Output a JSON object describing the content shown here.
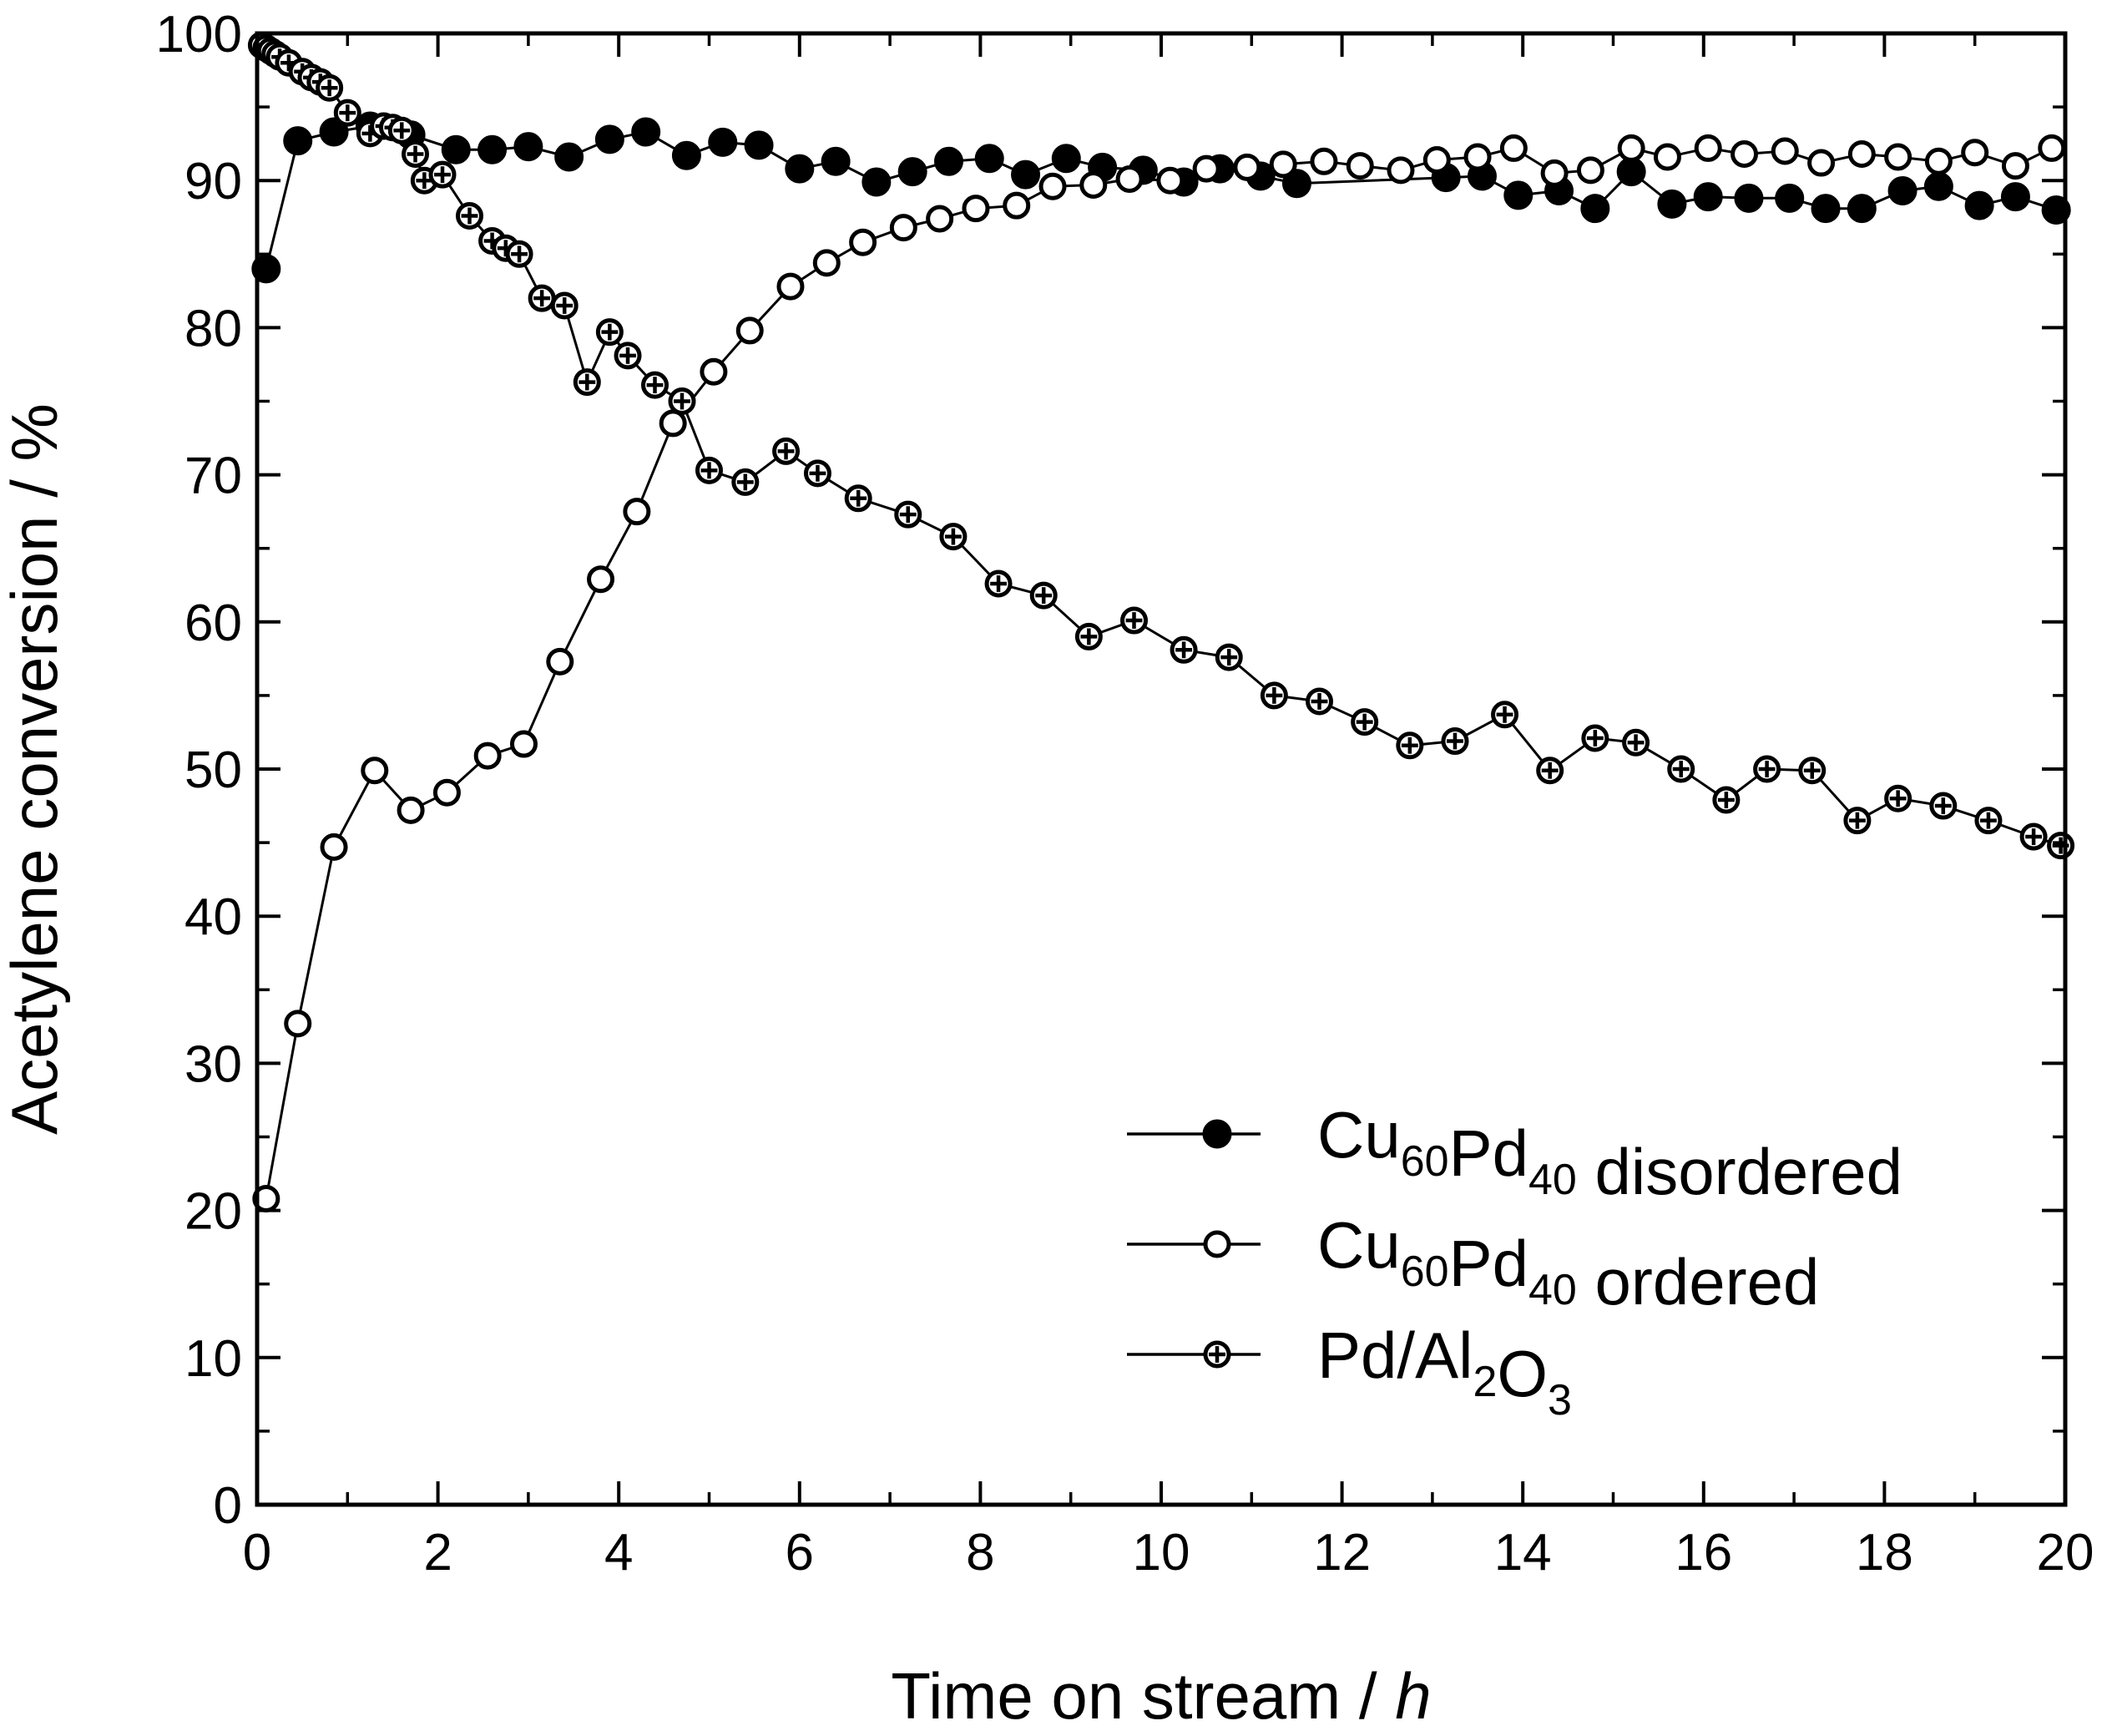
{
  "chart_data": {
    "type": "line",
    "title": "",
    "xlabel_main": "Time on stream / ",
    "xlabel_var": "h",
    "ylabel": "Acetylene conversion / %",
    "xlim": [
      0,
      20
    ],
    "ylim": [
      0,
      100
    ],
    "x_ticks": [
      "0",
      "2",
      "4",
      "6",
      "8",
      "10",
      "12",
      "14",
      "16",
      "18",
      "20"
    ],
    "y_ticks": [
      "0",
      "10",
      "20",
      "30",
      "40",
      "50",
      "60",
      "70",
      "80",
      "90",
      "100"
    ],
    "legend": {
      "position": "bottom-right",
      "items": [
        {
          "pre": "Cu",
          "sub1": "60",
          "mid": "Pd",
          "sub2": "40",
          "post": " disordered"
        },
        {
          "pre": "Cu",
          "sub1": "60",
          "mid": "Pd",
          "sub2": "40",
          "post": " ordered"
        },
        {
          "pre": "Pd/Al",
          "sub1": "2",
          "mid": "O",
          "sub2": "3",
          "post": ""
        }
      ]
    },
    "series": [
      {
        "name": "Cu60Pd40 disordered",
        "marker": "filled-circle",
        "x": [
          0.1,
          0.45,
          0.85,
          1.25,
          1.7,
          2.2,
          2.6,
          3.0,
          3.45,
          3.9,
          4.3,
          4.75,
          5.15,
          5.55,
          6.0,
          6.4,
          6.85,
          7.25,
          7.65,
          8.1,
          8.5,
          8.95,
          9.35,
          9.8,
          10.25,
          10.65,
          11.1,
          11.5,
          13.15,
          13.55,
          13.95,
          14.4,
          14.8,
          15.2,
          15.65,
          16.05,
          16.5,
          16.95,
          17.35,
          17.75,
          18.2,
          18.6,
          19.05,
          19.45,
          19.9
        ],
        "values": [
          84,
          92.7,
          93.3,
          93.7,
          93.1,
          92.1,
          92.1,
          92.3,
          91.6,
          92.8,
          93.3,
          91.7,
          92.6,
          92.4,
          90.8,
          91.3,
          89.9,
          90.6,
          91.3,
          91.5,
          90.4,
          91.5,
          90.9,
          90.7,
          89.9,
          90.8,
          90.3,
          89.8,
          90.2,
          90.3,
          89.0,
          89.3,
          88.1,
          90.6,
          88.4,
          88.9,
          88.8,
          88.8,
          88.1,
          88.1,
          89.3,
          89.6,
          88.3,
          88.9,
          88.0
        ]
      },
      {
        "name": "Cu60Pd40 ordered",
        "marker": "open-circle",
        "x": [
          0.1,
          0.45,
          0.85,
          1.3,
          1.7,
          2.1,
          2.55,
          2.95,
          3.35,
          3.8,
          4.2,
          4.6,
          5.05,
          5.45,
          5.9,
          6.3,
          6.7,
          7.15,
          7.55,
          7.95,
          8.4,
          8.8,
          9.25,
          9.65,
          10.1,
          10.5,
          10.95,
          11.35,
          11.8,
          12.2,
          12.65,
          13.05,
          13.5,
          13.9,
          14.35,
          14.75,
          15.2,
          15.6,
          16.05,
          16.45,
          16.9,
          17.3,
          17.75,
          18.15,
          18.6,
          19.0,
          19.45,
          19.85
        ],
        "values": [
          20.8,
          32.7,
          44.7,
          49.9,
          47.2,
          48.4,
          50.9,
          51.7,
          57.3,
          62.9,
          67.5,
          73.5,
          77.0,
          79.8,
          82.8,
          84.4,
          85.8,
          86.8,
          87.4,
          88.1,
          88.3,
          89.6,
          89.7,
          90.1,
          90.0,
          90.8,
          90.9,
          91.1,
          91.3,
          91.0,
          90.7,
          91.4,
          91.6,
          92.2,
          90.5,
          90.7,
          92.2,
          91.6,
          92.2,
          91.8,
          92.0,
          91.2,
          91.8,
          91.6,
          91.3,
          91.9,
          91.0,
          92.2
        ]
      },
      {
        "name": "Pd/Al2O3",
        "marker": "circle-plus",
        "x": [
          0.05,
          0.1,
          0.15,
          0.2,
          0.25,
          0.35,
          0.5,
          0.6,
          0.7,
          0.8,
          1.0,
          1.25,
          1.4,
          1.5,
          1.6,
          1.75,
          1.85,
          2.05,
          2.35,
          2.6,
          2.75,
          2.9,
          3.15,
          3.4,
          3.65,
          3.9,
          4.1,
          4.4,
          4.7,
          5.0,
          5.4,
          5.85,
          6.2,
          6.65,
          7.2,
          7.7,
          8.2,
          8.7,
          9.2,
          9.7,
          10.25,
          10.75,
          11.25,
          11.75,
          12.25,
          12.75,
          13.25,
          13.8,
          14.3,
          14.8,
          15.25,
          15.75,
          16.25,
          16.7,
          17.2,
          17.7,
          18.15,
          18.65,
          19.15,
          19.65,
          19.95
        ],
        "values": [
          99.2,
          99.0,
          98.8,
          98.6,
          98.4,
          98.0,
          97.4,
          97.0,
          96.7,
          96.3,
          94.6,
          93.2,
          93.7,
          93.6,
          93.4,
          91.8,
          90.0,
          90.4,
          87.6,
          85.9,
          85.4,
          85.0,
          82.0,
          81.5,
          76.3,
          79.7,
          78.1,
          76.1,
          75.0,
          70.3,
          69.5,
          71.6,
          70.1,
          68.4,
          67.3,
          65.8,
          62.6,
          61.8,
          59.0,
          60.1,
          58.1,
          57.6,
          55.0,
          54.6,
          53.2,
          51.6,
          51.9,
          53.7,
          49.9,
          52.1,
          51.8,
          50.0,
          47.9,
          50.0,
          49.9,
          46.5,
          48.0,
          47.5,
          46.5,
          45.4,
          44.8
        ]
      }
    ]
  }
}
